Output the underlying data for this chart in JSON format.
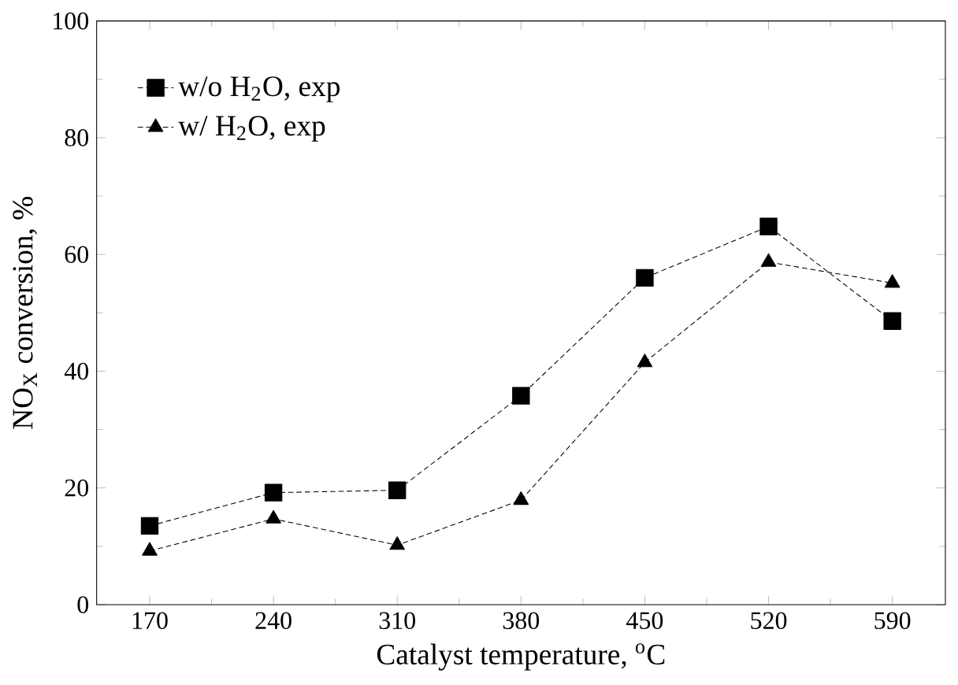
{
  "chart_data": {
    "type": "line",
    "xlabel": "Catalyst temperature, $^{o}$C",
    "ylabel": "NO$_{X}$ conversion, %",
    "x": [
      170,
      240,
      310,
      380,
      450,
      520,
      590
    ],
    "series": [
      {
        "name": "w/o H$_{2}$O, exp",
        "color": "#000000",
        "marker": "square",
        "values": [
          13.5,
          19.2,
          19.6,
          35.8,
          56.0,
          64.8,
          48.6
        ]
      },
      {
        "name": "w/ H$_{2}$O, exp",
        "color": "#000000",
        "marker": "triangle",
        "values": [
          9.2,
          14.7,
          10.2,
          17.9,
          41.5,
          58.7,
          55.1
        ]
      }
    ],
    "xlim": [
      140,
      620
    ],
    "ylim": [
      0,
      100
    ],
    "xticks": [
      170,
      240,
      310,
      380,
      450,
      520,
      590
    ],
    "yticks": [
      0,
      20,
      40,
      60,
      80,
      100
    ],
    "legend": "top left",
    "line_style": "dashed",
    "grid": false
  }
}
